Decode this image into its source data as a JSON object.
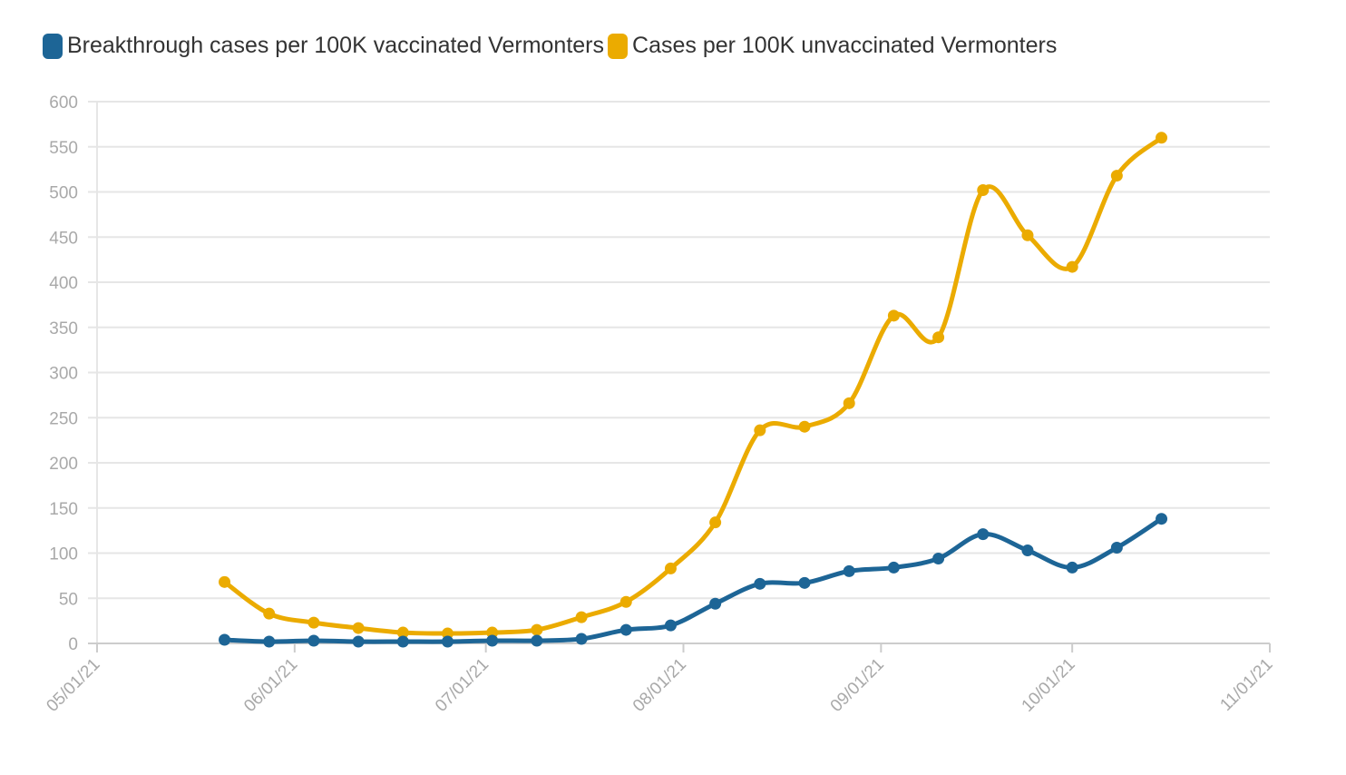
{
  "chart_data": {
    "type": "line",
    "xlim": [
      "2021-05-01",
      "2021-11-01"
    ],
    "ylim": [
      0,
      600
    ],
    "y_ticks": [
      0,
      50,
      100,
      150,
      200,
      250,
      300,
      350,
      400,
      450,
      500,
      550,
      600
    ],
    "x_ticks": [
      {
        "date": "2021-05-01",
        "label": "05/01/21"
      },
      {
        "date": "2021-06-01",
        "label": "06/01/21"
      },
      {
        "date": "2021-07-01",
        "label": "07/01/21"
      },
      {
        "date": "2021-08-01",
        "label": "08/01/21"
      },
      {
        "date": "2021-09-01",
        "label": "09/01/21"
      },
      {
        "date": "2021-10-01",
        "label": "10/01/21"
      },
      {
        "date": "2021-11-01",
        "label": "11/01/21"
      }
    ],
    "grid": true,
    "legend_position": "top-left",
    "x": [
      "2021-05-21",
      "2021-05-28",
      "2021-06-04",
      "2021-06-11",
      "2021-06-18",
      "2021-06-25",
      "2021-07-02",
      "2021-07-09",
      "2021-07-16",
      "2021-07-23",
      "2021-07-30",
      "2021-08-06",
      "2021-08-13",
      "2021-08-20",
      "2021-08-27",
      "2021-09-03",
      "2021-09-10",
      "2021-09-17",
      "2021-09-24",
      "2021-10-01",
      "2021-10-08",
      "2021-10-15"
    ],
    "series": [
      {
        "name": "Breakthrough cases per 100K vaccinated Vermonters",
        "color": "#1d6596",
        "values": [
          4,
          2,
          3,
          2,
          2,
          2,
          3,
          3,
          5,
          15,
          20,
          44,
          66,
          67,
          80,
          84,
          94,
          121,
          103,
          84,
          106,
          138
        ]
      },
      {
        "name": "Cases per 100K unvaccinated Vermonters",
        "color": "#ebab00",
        "values": [
          68,
          33,
          23,
          17,
          12,
          11,
          12,
          15,
          29,
          46,
          83,
          134,
          236,
          240,
          266,
          363,
          339,
          502,
          452,
          417,
          518,
          560
        ]
      }
    ]
  }
}
